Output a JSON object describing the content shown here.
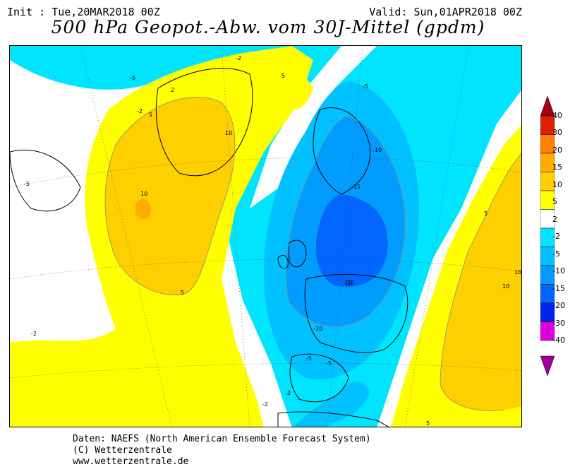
{
  "header": {
    "init": "Init : Tue,20MAR2018 00Z",
    "valid": "Valid: Sun,01APR2018 00Z",
    "title": "500 hPa Geopot.-Abw. vom 30J-Mittel (gpdm)"
  },
  "map": {
    "contour_labels": [
      "-5",
      "-2",
      "2",
      "5",
      "10",
      "-10",
      "-15",
      "-16",
      "5",
      "-5",
      "-2",
      "-2",
      "-10",
      "-5",
      "-5",
      "-2",
      "5",
      "10",
      "10",
      "10",
      "5",
      "5",
      "-2",
      "-5",
      "-10"
    ]
  },
  "legend": {
    "levels": [
      "40",
      "30",
      "20",
      "15",
      "10",
      "5",
      "2",
      "-2",
      "-5",
      "-10",
      "-15",
      "-20",
      "-30",
      "-40"
    ],
    "colors": [
      "#a4001e",
      "#dd2000",
      "#ff7f00",
      "#ffab00",
      "#ffd000",
      "#ffff00",
      "#ffffff",
      "#00e4ff",
      "#00c1ff",
      "#009cff",
      "#0066ff",
      "#0023ee",
      "#dd00dd",
      "#9a009a"
    ]
  },
  "footer": {
    "line1": "Daten: NAEFS (North American Ensemble Forecast System)",
    "line2": "(C) Wetterzentrale",
    "line3": "www.wetterzentrale.de"
  }
}
